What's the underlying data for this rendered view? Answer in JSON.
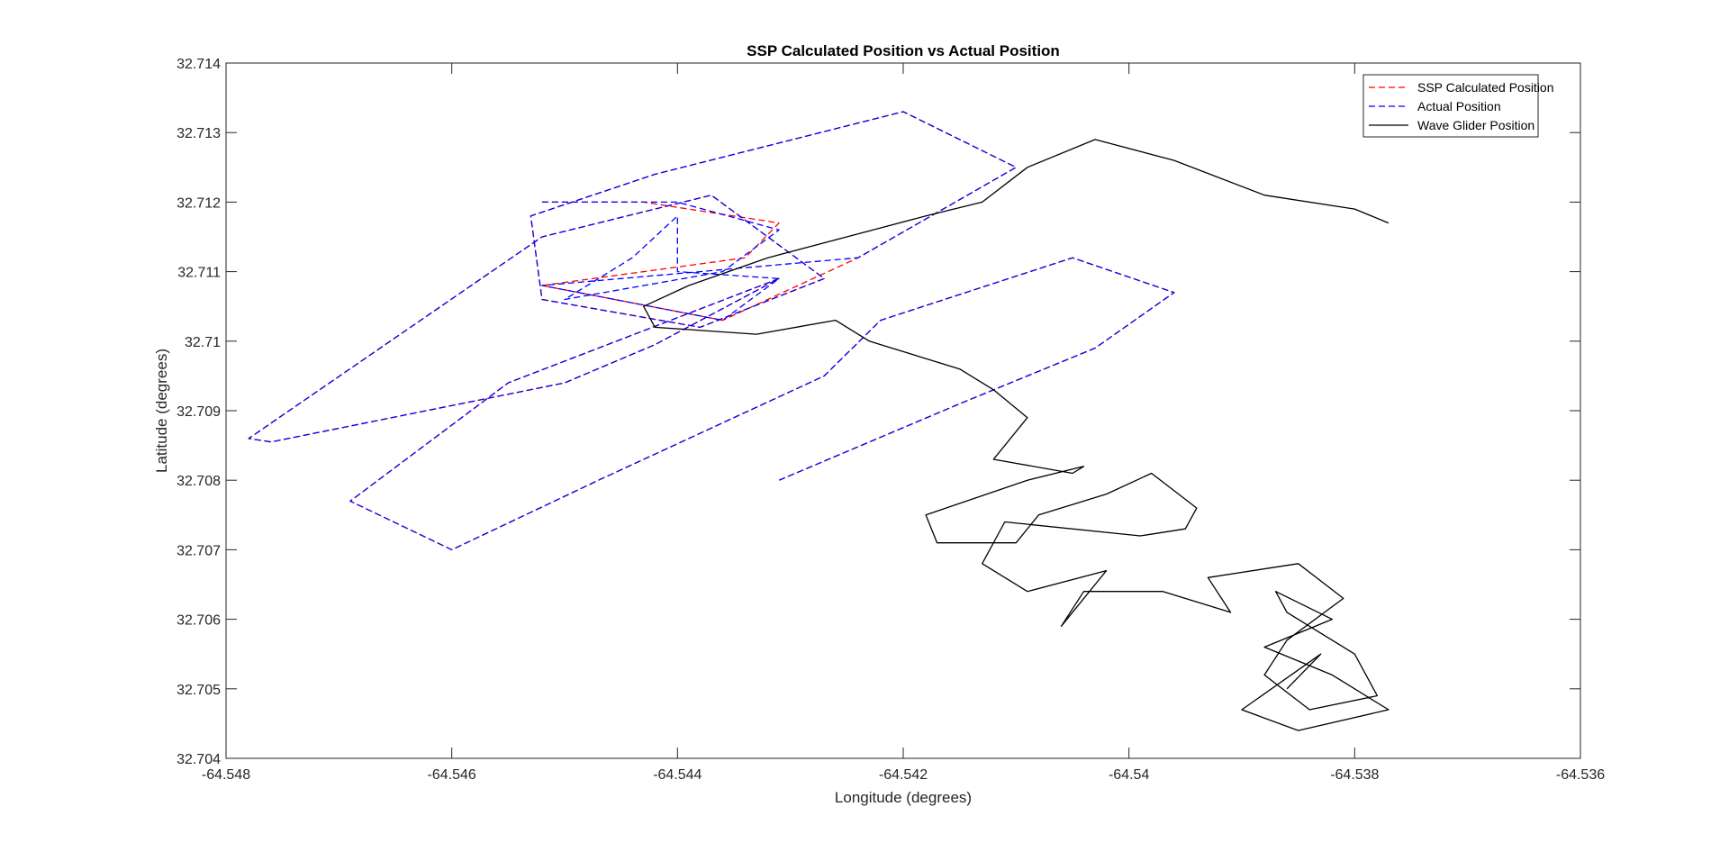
{
  "chart_data": {
    "type": "line",
    "title": "SSP Calculated Position vs Actual Position",
    "xlabel": "Longitude (degrees)",
    "ylabel": "Latitude (degrees)",
    "xlim": [
      -64.548,
      -64.536
    ],
    "ylim": [
      32.704,
      32.714
    ],
    "xticks": [
      -64.548,
      -64.546,
      -64.544,
      -64.542,
      -64.54,
      -64.538,
      -64.536
    ],
    "xtick_labels": [
      "-64.548",
      "-64.546",
      "-64.544",
      "-64.542",
      "-64.54",
      "-64.538",
      "-64.536"
    ],
    "yticks": [
      32.704,
      32.705,
      32.706,
      32.707,
      32.708,
      32.709,
      32.71,
      32.711,
      32.712,
      32.713,
      32.714
    ],
    "ytick_labels": [
      "32.704",
      "32.705",
      "32.706",
      "32.707",
      "32.708",
      "32.709",
      "32.71",
      "32.711",
      "32.712",
      "32.713",
      "32.714"
    ],
    "grid": false,
    "legend_position": "top-right",
    "series": [
      {
        "name": "SSP Calculated Position",
        "color": "#ff0000",
        "style": "dashed",
        "x": [
          -64.5452,
          -64.5443,
          -64.5431,
          -64.5434,
          -64.5452,
          -64.5436,
          -64.5424,
          -64.541,
          -64.542,
          -64.5442,
          -64.5453,
          -64.5452,
          -64.5438,
          -64.5427,
          -64.5437,
          -64.5452,
          -64.5478,
          -64.5476,
          -64.545,
          -64.5442,
          -64.5431,
          -64.5455,
          -64.5469,
          -64.546,
          -64.5447,
          -64.5427,
          -64.5422,
          -64.5405,
          -64.5396,
          -64.5403,
          -64.5415,
          -64.5431
        ],
        "y": [
          32.712,
          32.712,
          32.7117,
          32.7112,
          32.7108,
          32.7103,
          32.7112,
          32.7125,
          32.7133,
          32.7124,
          32.7118,
          32.7106,
          32.7102,
          32.7109,
          32.7121,
          32.7115,
          32.7086,
          32.70855,
          32.7094,
          32.70995,
          32.7109,
          32.7094,
          32.7077,
          32.707,
          32.708,
          32.7095,
          32.7103,
          32.7112,
          32.7107,
          32.7099,
          32.7091,
          32.708
        ]
      },
      {
        "name": "Actual Position",
        "color": "#0000ff",
        "style": "dashed",
        "x": [
          -64.5452,
          -64.544,
          -64.5431,
          -64.5436,
          -64.545,
          -64.5444,
          -64.544,
          -64.544,
          -64.5431,
          -64.5436,
          -64.5452,
          -64.5424,
          -64.541,
          -64.542,
          -64.5442,
          -64.5453,
          -64.5452,
          -64.5438,
          -64.5427,
          -64.5437,
          -64.5452,
          -64.5478,
          -64.5476,
          -64.545,
          -64.5442,
          -64.5431,
          -64.5455,
          -64.5469,
          -64.546,
          -64.5447,
          -64.5427,
          -64.5422,
          -64.5405,
          -64.5396,
          -64.5403,
          -64.5415,
          -64.5431
        ],
        "y": [
          32.712,
          32.712,
          32.7116,
          32.711,
          32.7106,
          32.7112,
          32.7118,
          32.711,
          32.7109,
          32.7103,
          32.7108,
          32.7112,
          32.7125,
          32.7133,
          32.7124,
          32.7118,
          32.7106,
          32.7102,
          32.7109,
          32.7121,
          32.7115,
          32.7086,
          32.70855,
          32.7094,
          32.70995,
          32.7109,
          32.7094,
          32.7077,
          32.707,
          32.708,
          32.7095,
          32.7103,
          32.7112,
          32.7107,
          32.7099,
          32.7091,
          32.708
        ]
      },
      {
        "name": "Wave Glider Position",
        "color": "#000000",
        "style": "solid",
        "x": [
          -64.5377,
          -64.538,
          -64.5388,
          -64.5396,
          -64.5403,
          -64.5409,
          -64.5413,
          -64.5418,
          -64.5425,
          -64.5432,
          -64.5439,
          -64.5443,
          -64.5442,
          -64.5433,
          -64.5426,
          -64.5423,
          -64.5415,
          -64.5412,
          -64.5409,
          -64.5412,
          -64.5405,
          -64.5404,
          -64.5409,
          -64.5418,
          -64.5417,
          -64.541,
          -64.5408,
          -64.5402,
          -64.5398,
          -64.5394,
          -64.5395,
          -64.5399,
          -64.5411,
          -64.5413,
          -64.5409,
          -64.5402,
          -64.5406,
          -64.5404,
          -64.5397,
          -64.5391,
          -64.5393,
          -64.5385,
          -64.5381,
          -64.5386,
          -64.5388,
          -64.5384,
          -64.5378,
          -64.538,
          -64.5386,
          -64.5387,
          -64.5382,
          -64.5388,
          -64.5382,
          -64.5377,
          -64.5385,
          -64.539,
          -64.5383,
          -64.5386
        ],
        "y": [
          32.7117,
          32.7119,
          32.7121,
          32.7126,
          32.7129,
          32.7125,
          32.712,
          32.7118,
          32.7115,
          32.7112,
          32.7108,
          32.7105,
          32.7102,
          32.7101,
          32.7103,
          32.71,
          32.7096,
          32.7093,
          32.7089,
          32.7083,
          32.7081,
          32.7082,
          32.708,
          32.7075,
          32.7071,
          32.7071,
          32.7075,
          32.7078,
          32.7081,
          32.7076,
          32.7073,
          32.7072,
          32.7074,
          32.7068,
          32.7064,
          32.7067,
          32.7059,
          32.7064,
          32.7064,
          32.7061,
          32.7066,
          32.7068,
          32.7063,
          32.7057,
          32.7052,
          32.7047,
          32.7049,
          32.7055,
          32.7061,
          32.7064,
          32.706,
          32.7056,
          32.7052,
          32.7047,
          32.7044,
          32.7047,
          32.7055,
          32.705
        ]
      }
    ]
  }
}
